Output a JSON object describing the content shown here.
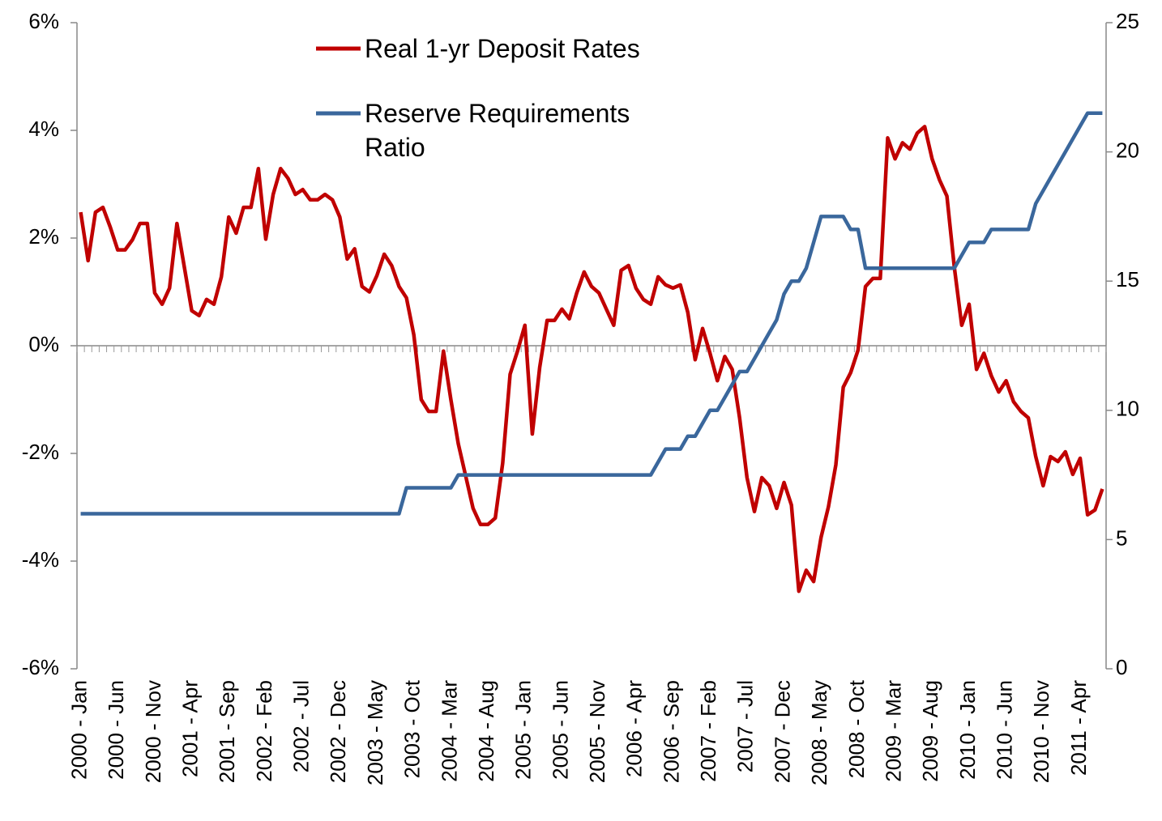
{
  "chart_data": {
    "type": "line",
    "categories": [
      "2000 - Jan",
      null,
      null,
      null,
      null,
      "2000 - Jun",
      null,
      null,
      null,
      null,
      "2000 - Nov",
      null,
      null,
      null,
      null,
      "2001 - Apr",
      null,
      null,
      null,
      null,
      "2001 - Sep",
      null,
      null,
      null,
      null,
      "2002 - Feb",
      null,
      null,
      null,
      null,
      "2002 - Jul",
      null,
      null,
      null,
      null,
      "2002 - Dec",
      null,
      null,
      null,
      null,
      "2003 - May",
      null,
      null,
      null,
      null,
      "2003 - Oct",
      null,
      null,
      null,
      null,
      "2004 - Mar",
      null,
      null,
      null,
      null,
      "2004 - Aug",
      null,
      null,
      null,
      null,
      "2005 - Jan",
      null,
      null,
      null,
      null,
      "2005 - Jun",
      null,
      null,
      null,
      null,
      "2005 - Nov",
      null,
      null,
      null,
      null,
      "2006 - Apr",
      null,
      null,
      null,
      null,
      "2006 - Sep",
      null,
      null,
      null,
      null,
      "2007 - Feb",
      null,
      null,
      null,
      null,
      "2007 - Jul",
      null,
      null,
      null,
      null,
      "2007 - Dec",
      null,
      null,
      null,
      null,
      "2008 - May",
      null,
      null,
      null,
      null,
      "2008 - Oct",
      null,
      null,
      null,
      null,
      "2009 - Mar",
      null,
      null,
      null,
      null,
      "2009 - Aug",
      null,
      null,
      null,
      null,
      "2010 - Jan",
      null,
      null,
      null,
      null,
      "2010 - Jun",
      null,
      null,
      null,
      null,
      "2010 - Nov",
      null,
      null,
      null,
      null,
      "2011 - Apr",
      null,
      null,
      null
    ],
    "series": [
      {
        "name": "Real 1-yr Deposit Rates",
        "color": "#c00000",
        "values": [
          2.48,
          1.58,
          2.48,
          2.57,
          2.2,
          1.78,
          1.78,
          1.97,
          2.27,
          2.27,
          0.98,
          0.77,
          1.07,
          2.27,
          1.46,
          0.65,
          0.56,
          0.86,
          0.77,
          1.28,
          2.39,
          2.09,
          2.57,
          2.57,
          3.29,
          1.98,
          2.81,
          3.29,
          3.11,
          2.81,
          2.9,
          2.71,
          2.71,
          2.81,
          2.71,
          2.39,
          1.61,
          1.8,
          1.1,
          1.0,
          1.3,
          1.7,
          1.49,
          1.1,
          0.89,
          0.2,
          -1.0,
          -1.22,
          -1.22,
          -0.1,
          -1.0,
          -1.82,
          -2.42,
          -3.02,
          -3.32,
          -3.32,
          -3.2,
          -2.18,
          -0.53,
          -0.1,
          0.38,
          -1.64,
          -0.4,
          0.47,
          0.47,
          0.68,
          0.5,
          0.98,
          1.37,
          1.1,
          0.98,
          0.68,
          0.38,
          1.4,
          1.49,
          1.07,
          0.86,
          0.77,
          1.28,
          1.13,
          1.07,
          1.13,
          0.62,
          -0.26,
          0.32,
          -0.14,
          -0.65,
          -0.2,
          -0.44,
          -1.34,
          -2.45,
          -3.08,
          -2.45,
          -2.6,
          -3.02,
          -2.54,
          -2.96,
          -4.56,
          -4.17,
          -4.38,
          -3.56,
          -2.99,
          -2.21,
          -0.77,
          -0.5,
          -0.08,
          1.1,
          1.25,
          1.25,
          3.86,
          3.47,
          3.77,
          3.65,
          3.95,
          4.07,
          3.47,
          3.08,
          2.78,
          1.46,
          0.38,
          0.77,
          -0.44,
          -0.14,
          -0.56,
          -0.86,
          -0.65,
          -1.04,
          -1.22,
          -1.34,
          -2.06,
          -2.6,
          -2.06,
          -2.15,
          -1.97,
          -2.39,
          -2.09,
          -3.14,
          -3.05,
          -2.66
        ]
      },
      {
        "name": "Reserve Requirements Ratio",
        "color": "#3a679c",
        "axis": "y2",
        "values": [
          6,
          6,
          6,
          6,
          6,
          6,
          6,
          6,
          6,
          6,
          6,
          6,
          6,
          6,
          6,
          6,
          6,
          6,
          6,
          6,
          6,
          6,
          6,
          6,
          6,
          6,
          6,
          6,
          6,
          6,
          6,
          6,
          6,
          6,
          6,
          6,
          6,
          6,
          6,
          6,
          6,
          6,
          6,
          6,
          7,
          7,
          7,
          7,
          7,
          7,
          7,
          7.5,
          7.5,
          7.5,
          7.5,
          7.5,
          7.5,
          7.5,
          7.5,
          7.5,
          7.5,
          7.5,
          7.5,
          7.5,
          7.5,
          7.5,
          7.5,
          7.5,
          7.5,
          7.5,
          7.5,
          7.5,
          7.5,
          7.5,
          7.5,
          7.5,
          7.5,
          7.5,
          8,
          8.5,
          8.5,
          8.5,
          9,
          9,
          9.5,
          10,
          10,
          10.5,
          11,
          11.5,
          11.5,
          12,
          12.5,
          13,
          13.5,
          14.5,
          15,
          15,
          15.5,
          16.5,
          17.5,
          17.5,
          17.5,
          17.5,
          17,
          17,
          15.5,
          15.5,
          15.5,
          15.5,
          15.5,
          15.5,
          15.5,
          15.5,
          15.5,
          15.5,
          15.5,
          15.5,
          15.5,
          16,
          16.5,
          16.5,
          16.5,
          17,
          17,
          17,
          17,
          17,
          17,
          18,
          18.5,
          19,
          19.5,
          20,
          20.5,
          21,
          21.5,
          21.5,
          21.5
        ]
      }
    ],
    "ylim": [
      -6,
      6
    ],
    "yticks": [
      {
        "value": -6,
        "label": "-6%"
      },
      {
        "value": -4,
        "label": "-4%"
      },
      {
        "value": -2,
        "label": "-2%"
      },
      {
        "value": 0,
        "label": "0%"
      },
      {
        "value": 2,
        "label": "2%"
      },
      {
        "value": 4,
        "label": "4%"
      },
      {
        "value": 6,
        "label": "6%"
      }
    ],
    "y2lim": [
      0,
      25
    ],
    "y2ticks": [
      0,
      5,
      10,
      15,
      20,
      25
    ],
    "legend": "top"
  }
}
